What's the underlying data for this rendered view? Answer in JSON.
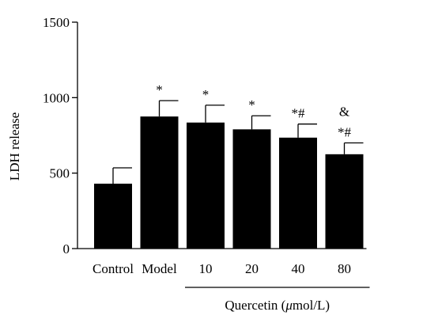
{
  "chart_data": {
    "type": "bar",
    "categories": [
      "Control",
      "Model",
      "10",
      "20",
      "40",
      "80"
    ],
    "values": [
      430,
      875,
      835,
      790,
      735,
      625
    ],
    "errors": [
      105,
      105,
      115,
      90,
      90,
      75
    ],
    "annotations": [
      "",
      "*",
      "*",
      "*",
      "*#",
      "*#"
    ],
    "extra_annotation": {
      "category": "80",
      "text": "&"
    },
    "ylabel": "LDH release",
    "xlabel": "",
    "ylim": [
      0,
      1500
    ],
    "yticks": [
      0,
      500,
      1000,
      1500
    ],
    "group_label": {
      "text": "Quercetin (",
      "mu": "μ",
      "unit": "mol/L)",
      "categories": [
        "10",
        "20",
        "40",
        "80"
      ]
    },
    "bar_color": "#000000",
    "grid": false
  }
}
